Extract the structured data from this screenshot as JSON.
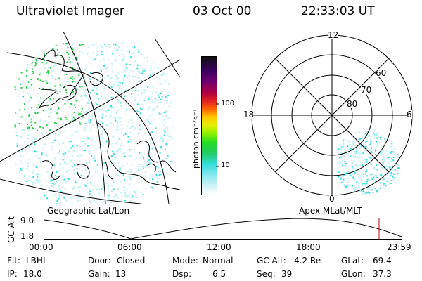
{
  "header": {
    "instrument": "Ultraviolet Imager",
    "date": "03 Oct 00",
    "time": "22:33:03 UT"
  },
  "colorbar": {
    "label": "photon cm⁻²s⁻¹",
    "ticks": [
      "100",
      "10"
    ]
  },
  "polar_plot": {
    "mlt_labels": {
      "top": "12",
      "bottom": "0",
      "left": "18",
      "right": "6"
    },
    "lat_labels": [
      "60",
      "70",
      "80"
    ]
  },
  "timeline": {
    "left_title": "Geographic Lat/Lon",
    "right_title": "Apex MLat/MLT",
    "ylabel": "GC Alt",
    "y_ticks": [
      "9.0",
      "1.8"
    ],
    "x_ticks": [
      "00:00",
      "06:00",
      "12:00",
      "18:00",
      "23:59"
    ],
    "marker_color": "#cc0000"
  },
  "status": {
    "row1": [
      {
        "label": "Flt:",
        "value": "LBHL"
      },
      {
        "label": "Door:",
        "value": "Closed"
      },
      {
        "label": "Mode:",
        "value": "Normal"
      },
      {
        "label": "GC Alt:",
        "value": "4.2 Re"
      },
      {
        "label": "GLat:",
        "value": "69.4"
      }
    ],
    "row2": [
      {
        "label": "IP:",
        "value": "18.0"
      },
      {
        "label": "Gain:",
        "value": "13"
      },
      {
        "label": "Dsp:",
        "value": "6.5"
      },
      {
        "label": "Seq:",
        "value": "39"
      },
      {
        "label": "GLon:",
        "value": "37.3"
      }
    ]
  },
  "colors": {
    "aurora_green": "#22cc44",
    "aurora_cyan": "#33dddd",
    "pale_cyan": "#bfeff0"
  }
}
